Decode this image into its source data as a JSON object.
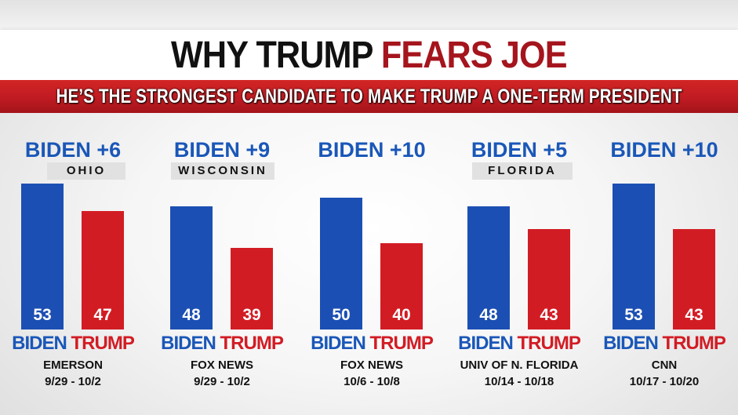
{
  "header": {
    "title_part1": "WHY TRUMP ",
    "title_part2": "FEARS JOE",
    "subtitle": "HE’S THE STRONGEST CANDIDATE TO MAKE TRUMP A ONE-TERM PRESIDENT"
  },
  "colors": {
    "biden": "#1c4fb3",
    "trump": "#d21c24",
    "title_accent": "#a5151d"
  },
  "candidate_labels": {
    "biden": "BIDEN",
    "trump": "TRUMP"
  },
  "chart_data": {
    "type": "bar",
    "series": [
      {
        "name": "BIDEN",
        "values": [
          53,
          48,
          50,
          48,
          53
        ]
      },
      {
        "name": "TRUMP",
        "values": [
          47,
          39,
          40,
          43,
          43
        ]
      }
    ],
    "categories": [
      "EMERSON",
      "FOX NEWS",
      "FOX NEWS",
      "UNIV OF N. FLORIDA",
      "CNN"
    ],
    "polls": [
      {
        "margin": "BIDEN +6",
        "state": "OHIO",
        "source": "EMERSON",
        "dates": "9/29 - 10/2",
        "biden": 53,
        "trump": 47
      },
      {
        "margin": "BIDEN +9",
        "state": "WISCONSIN",
        "source": "FOX NEWS",
        "dates": "9/29 - 10/2",
        "biden": 48,
        "trump": 39
      },
      {
        "margin": "BIDEN +10",
        "state": "",
        "source": "FOX NEWS",
        "dates": "10/6 - 10/8",
        "biden": 50,
        "trump": 40
      },
      {
        "margin": "BIDEN +5",
        "state": "FLORIDA",
        "source": "UNIV OF N. FLORIDA",
        "dates": "10/14 - 10/18",
        "biden": 48,
        "trump": 43
      },
      {
        "margin": "BIDEN +10",
        "state": "",
        "source": "CNN",
        "dates": "10/17 - 10/20",
        "biden": 53,
        "trump": 43
      }
    ]
  }
}
